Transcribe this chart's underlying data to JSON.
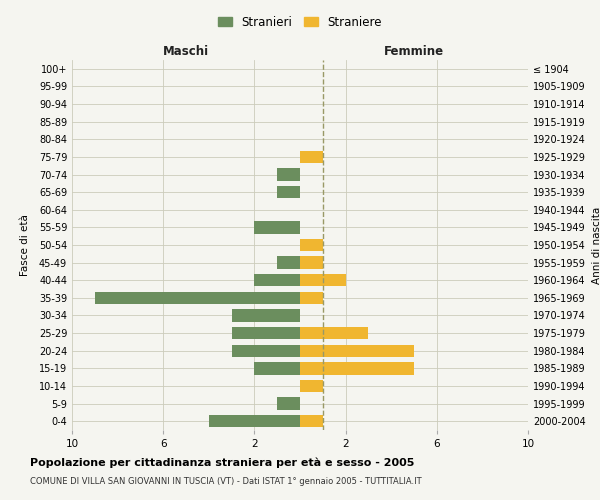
{
  "age_groups": [
    "100+",
    "95-99",
    "90-94",
    "85-89",
    "80-84",
    "75-79",
    "70-74",
    "65-69",
    "60-64",
    "55-59",
    "50-54",
    "45-49",
    "40-44",
    "35-39",
    "30-34",
    "25-29",
    "20-24",
    "15-19",
    "10-14",
    "5-9",
    "0-4"
  ],
  "birth_years": [
    "≤ 1904",
    "1905-1909",
    "1910-1914",
    "1915-1919",
    "1920-1924",
    "1925-1929",
    "1930-1934",
    "1935-1939",
    "1940-1944",
    "1945-1949",
    "1950-1954",
    "1955-1959",
    "1960-1964",
    "1965-1969",
    "1970-1974",
    "1975-1979",
    "1980-1984",
    "1985-1989",
    "1990-1994",
    "1995-1999",
    "2000-2004"
  ],
  "maschi": [
    0,
    0,
    0,
    0,
    0,
    0,
    1,
    1,
    0,
    2,
    0,
    1,
    2,
    9,
    3,
    3,
    3,
    2,
    0,
    1,
    4
  ],
  "femmine": [
    0,
    0,
    0,
    0,
    0,
    1,
    0,
    0,
    0,
    0,
    1,
    1,
    2,
    1,
    0,
    3,
    5,
    5,
    1,
    0,
    1
  ],
  "maschi_color": "#6b8e5e",
  "femmine_color": "#f0b630",
  "title": "Popolazione per cittadinanza straniera per età e sesso - 2005",
  "subtitle": "COMUNE DI VILLA SAN GIOVANNI IN TUSCIA (VT) - Dati ISTAT 1° gennaio 2005 - TUTTITALIA.IT",
  "ylabel_left": "Fasce di età",
  "ylabel_right": "Anni di nascita",
  "xlabel_maschi": "Maschi",
  "xlabel_femmine": "Femmine",
  "legend_maschi": "Stranieri",
  "legend_femmine": "Straniere",
  "bg_color": "#f5f5f0",
  "grid_color": "#ccccbb",
  "bar_height": 0.7,
  "vline_x": 1,
  "vline_color": "#999966"
}
